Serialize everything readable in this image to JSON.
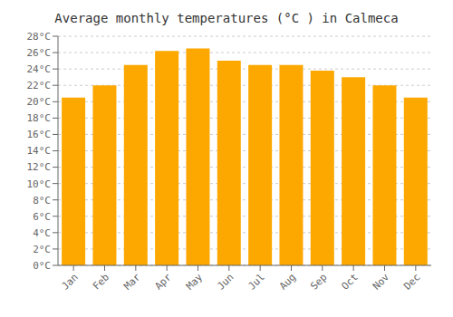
{
  "chart_data": {
    "type": "bar",
    "title": "Average monthly temperatures (°C ) in Calmeca",
    "categories": [
      "Jan",
      "Feb",
      "Mar",
      "Apr",
      "May",
      "Jun",
      "Jul",
      "Aug",
      "Sep",
      "Oct",
      "Nov",
      "Dec"
    ],
    "values": [
      20.5,
      22.0,
      24.5,
      26.2,
      26.5,
      25.0,
      24.5,
      24.5,
      23.8,
      23.0,
      22.0,
      20.5
    ],
    "color": "#FCA800",
    "ylim": [
      0,
      28
    ],
    "yticks": [
      {
        "value": 0,
        "label": "0°C"
      },
      {
        "value": 2,
        "label": "2°C"
      },
      {
        "value": 4,
        "label": "4°C"
      },
      {
        "value": 6,
        "label": "6°C"
      },
      {
        "value": 8,
        "label": "8°C"
      },
      {
        "value": 10,
        "label": "10°C"
      },
      {
        "value": 12,
        "label": "12°C"
      },
      {
        "value": 14,
        "label": "14°C"
      },
      {
        "value": 16,
        "label": "16°C"
      },
      {
        "value": 18,
        "label": "18°C"
      },
      {
        "value": 20,
        "label": "20°C"
      },
      {
        "value": 22,
        "label": "22°C"
      },
      {
        "value": 24,
        "label": "24°C"
      },
      {
        "value": 26,
        "label": "26°C"
      },
      {
        "value": 28,
        "label": "28°C"
      }
    ],
    "grid": true
  }
}
